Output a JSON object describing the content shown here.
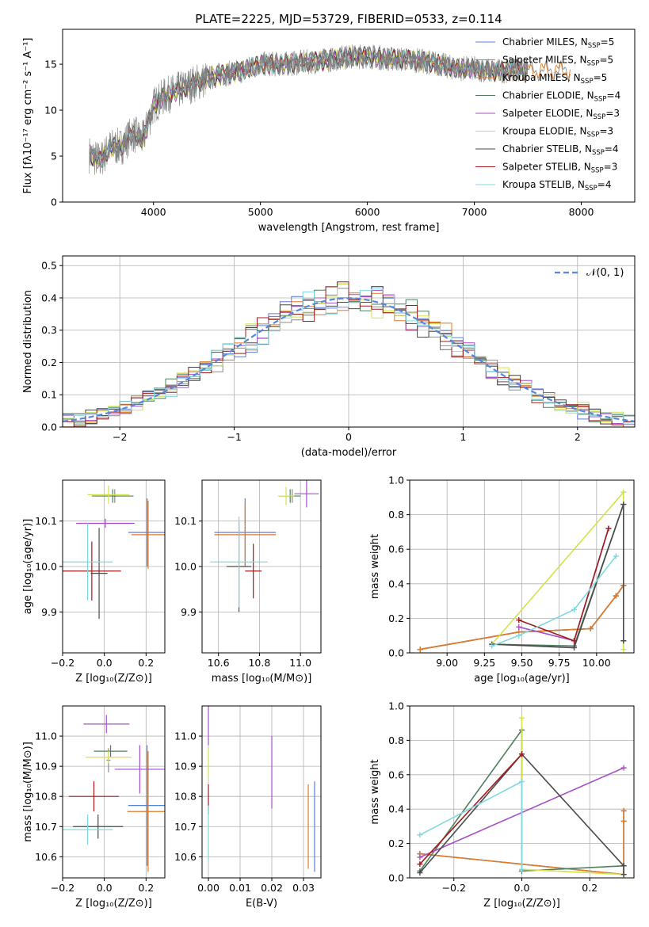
{
  "figure": {
    "title": "PLATE=2225, MJD=53729, FIBERID=0533, z=0.114"
  },
  "legend_entries": [
    {
      "label": "Chabrier MILES, N",
      "sub": "SSP",
      "suffix": "=5",
      "color": "#5a7fd6"
    },
    {
      "label": "Salpeter MILES, N",
      "sub": "SSP",
      "suffix": "=5",
      "color": "#8c8c8c"
    },
    {
      "label": "Kroupa MILES, N",
      "sub": "SSP",
      "suffix": "=5",
      "color": "#e07a26"
    },
    {
      "label": "Chabrier ELODIE, N",
      "sub": "SSP",
      "suffix": "=4",
      "color": "#4f7f5f"
    },
    {
      "label": "Salpeter ELODIE, N",
      "sub": "SSP",
      "suffix": "=3",
      "color": "#a64fc9"
    },
    {
      "label": "Kroupa ELODIE, N",
      "sub": "SSP",
      "suffix": "=3",
      "color": "#d6e04a"
    },
    {
      "label": "Chabrier STELIB, N",
      "sub": "SSP",
      "suffix": "=4",
      "color": "#4a4a4a"
    },
    {
      "label": "Salpeter STELIB, N",
      "sub": "SSP",
      "suffix": "=3",
      "color": "#a01c1c"
    },
    {
      "label": "Kroupa STELIB, N",
      "sub": "SSP",
      "suffix": "=4",
      "color": "#7fd9e0"
    }
  ],
  "chart_data": [
    {
      "id": "spectrum",
      "type": "line",
      "xlabel": "wavelength [Angstrom, rest frame]",
      "ylabel": "Flux [fλ10⁻¹⁷ erg cm⁻² s⁻¹ A⁻¹]",
      "xlim": [
        3150,
        8500
      ],
      "ylim": [
        0,
        18.8
      ],
      "xticks": [
        4000,
        5000,
        6000,
        7000,
        8000
      ],
      "yticks": [
        0,
        5,
        10,
        15
      ],
      "grid": false,
      "legend_position": "top-right",
      "data_envelope": {
        "x": [
          3400,
          3500,
          3600,
          3700,
          3800,
          3900,
          4000,
          4100,
          4200,
          4400,
          4600,
          4800,
          5000,
          5200,
          5400,
          5600,
          5800,
          6000,
          6200,
          6400,
          6600,
          6800,
          7000,
          7200,
          7400,
          7500
        ],
        "y": [
          5.2,
          4.5,
          6.0,
          6.0,
          7.5,
          6.8,
          10.5,
          11.5,
          12.0,
          13.0,
          13.8,
          14.2,
          15.0,
          15.0,
          15.2,
          15.4,
          15.8,
          15.9,
          15.6,
          15.5,
          15.2,
          14.6,
          14.5,
          14.2,
          14.5,
          14.3
        ]
      },
      "model_x_range": [
        3400,
        7500
      ],
      "models_tail": [
        {
          "model": "Chabrier MILES",
          "x_end": 7300
        },
        {
          "model": "Salpeter MILES",
          "x_end": 7900
        },
        {
          "model": "Kroupa MILES",
          "x_end": 7900
        }
      ]
    },
    {
      "id": "residuals",
      "type": "histogram",
      "xlabel": "(data-model)/error",
      "ylabel": "Normed distribution",
      "xlim": [
        -2.5,
        2.5
      ],
      "ylim": [
        0,
        0.53
      ],
      "xticks": [
        -2,
        -1,
        0,
        1,
        2
      ],
      "yticks": [
        0.0,
        0.1,
        0.2,
        0.3,
        0.4,
        0.5
      ],
      "grid": true,
      "legend_position": "top-right",
      "reference": {
        "label": "𝒩(0, 1)",
        "mean": 0,
        "sigma": 1,
        "color": "#5a86d9",
        "style": "dashed"
      },
      "bin_width": 0.1
    },
    {
      "id": "age_vs_Z",
      "type": "errorbar",
      "xlabel": "Z [log₁₀(Z/Z⊙)]",
      "ylabel": "age  [log₁₀(age/yr)]",
      "xlim": [
        -0.2,
        0.29
      ],
      "ylim": [
        9.81,
        10.19
      ],
      "xticks": [
        -0.2,
        0.0,
        0.2
      ],
      "yticks": [
        9.9,
        10.0,
        10.1
      ],
      "grid": true,
      "points": [
        {
          "model": "Chabrier MILES",
          "x": 0.205,
          "y": 10.075,
          "xerr": 0.09,
          "yerr": 0.075
        },
        {
          "model": "Salpeter MILES",
          "x": 0.05,
          "y": 10.155,
          "xerr": 0.01,
          "yerr": 0.015
        },
        {
          "model": "Kroupa MILES",
          "x": 0.21,
          "y": 10.07,
          "xerr": 0.08,
          "yerr": 0.075
        },
        {
          "model": "Chabrier ELODIE",
          "x": 0.04,
          "y": 10.155,
          "xerr": 0.1,
          "yerr": 0.015
        },
        {
          "model": "Salpeter ELODIE",
          "x": 0.005,
          "y": 10.095,
          "xerr": 0.14,
          "yerr": 0.01
        },
        {
          "model": "Kroupa ELODIE",
          "x": 0.02,
          "y": 10.158,
          "xerr": 0.1,
          "yerr": 0.02
        },
        {
          "model": "Chabrier STELIB",
          "x": -0.025,
          "y": 9.985,
          "xerr": 0.04,
          "yerr": 0.1
        },
        {
          "model": "Salpeter STELIB",
          "x": -0.06,
          "y": 9.99,
          "xerr": 0.14,
          "yerr": 0.065
        },
        {
          "model": "Kroupa STELIB",
          "x": -0.08,
          "y": 10.01,
          "xerr": 0.12,
          "yerr": 0.085
        }
      ]
    },
    {
      "id": "age_vs_mass",
      "type": "errorbar",
      "xlabel": "mass [log₁₀(M/M⊙)]",
      "ylabel": "",
      "xlim": [
        10.52,
        11.1
      ],
      "ylim": [
        9.81,
        10.19
      ],
      "xticks": [
        10.6,
        10.8,
        11.0
      ],
      "yticks": [
        9.9,
        10.0,
        10.1
      ],
      "grid": true,
      "points": [
        {
          "model": "Chabrier MILES",
          "x": 10.73,
          "y": 10.075,
          "xerr": 0.15,
          "yerr": 0.075
        },
        {
          "model": "Salpeter MILES",
          "x": 10.96,
          "y": 10.155,
          "xerr": 0.01,
          "yerr": 0.015
        },
        {
          "model": "Kroupa MILES",
          "x": 10.73,
          "y": 10.07,
          "xerr": 0.15,
          "yerr": 0.07
        },
        {
          "model": "Chabrier ELODIE",
          "x": 10.95,
          "y": 10.155,
          "xerr": 0.05,
          "yerr": 0.015
        },
        {
          "model": "Salpeter ELODIE",
          "x": 11.03,
          "y": 10.16,
          "xerr": 0.06,
          "yerr": 0.03
        },
        {
          "model": "Kroupa ELODIE",
          "x": 10.93,
          "y": 10.155,
          "xerr": 0.04,
          "yerr": 0.02
        },
        {
          "model": "Chabrier STELIB",
          "x": 10.7,
          "y": 10.0,
          "xerr": 0.06,
          "yerr": 0.1
        },
        {
          "model": "Salpeter STELIB",
          "x": 10.77,
          "y": 9.99,
          "xerr": 0.04,
          "yerr": 0.06
        },
        {
          "model": "Kroupa STELIB",
          "x": 10.7,
          "y": 10.01,
          "xerr": 0.14,
          "yerr": 0.1
        }
      ]
    },
    {
      "id": "weight_vs_age",
      "type": "line",
      "xlabel": "age  [log₁₀(age/yr)]",
      "ylabel": "mass weight",
      "xlim": [
        8.75,
        10.25
      ],
      "ylim": [
        0,
        1.0
      ],
      "xticks": [
        9.0,
        9.25,
        9.5,
        9.75,
        10.0
      ],
      "yticks": [
        0.0,
        0.2,
        0.4,
        0.6,
        0.8,
        1.0
      ],
      "grid": true,
      "series": [
        {
          "model": "Chabrier MILES",
          "x": [
            8.82,
            9.48,
            9.96,
            10.13,
            10.18
          ],
          "y": [
            0.02,
            0.12,
            0.14,
            0.33,
            0.39
          ]
        },
        {
          "model": "Salpeter MILES",
          "x": [
            8.82,
            9.48,
            9.96,
            10.13,
            10.18
          ],
          "y": [
            0.02,
            0.12,
            0.14,
            0.33,
            0.39
          ]
        },
        {
          "model": "Kroupa MILES",
          "x": [
            8.82,
            9.48,
            9.96,
            10.13,
            10.18
          ],
          "y": [
            0.02,
            0.12,
            0.14,
            0.33,
            0.39
          ]
        },
        {
          "model": "Chabrier ELODIE",
          "x": [
            9.3,
            9.85,
            10.18
          ],
          "y": [
            0.05,
            0.04,
            0.86
          ]
        },
        {
          "model": "Salpeter ELODIE",
          "x": [
            9.48,
            9.85,
            10.08
          ],
          "y": [
            0.15,
            0.07,
            0.72
          ]
        },
        {
          "model": "Kroupa ELODIE",
          "x": [
            9.3,
            10.18,
            10.18
          ],
          "y": [
            0.05,
            0.93,
            0.02
          ]
        },
        {
          "model": "Chabrier STELIB",
          "x": [
            9.3,
            9.85,
            10.18,
            10.18
          ],
          "y": [
            0.05,
            0.03,
            0.86,
            0.07
          ]
        },
        {
          "model": "Salpeter STELIB",
          "x": [
            9.48,
            9.85,
            10.08
          ],
          "y": [
            0.19,
            0.07,
            0.72
          ]
        },
        {
          "model": "Kroupa STELIB",
          "x": [
            9.3,
            9.48,
            9.85,
            10.13
          ],
          "y": [
            0.04,
            0.1,
            0.25,
            0.56
          ]
        }
      ]
    },
    {
      "id": "mass_vs_Z",
      "type": "errorbar",
      "xlabel": "Z [log₁₀(Z/Z⊙)]",
      "ylabel": "mass [log₁₀(M/M⊙)]",
      "xlim": [
        -0.2,
        0.29
      ],
      "ylim": [
        10.53,
        11.1
      ],
      "xticks": [
        -0.2,
        0.0,
        0.2
      ],
      "yticks": [
        10.6,
        10.7,
        10.8,
        10.9,
        11.0
      ],
      "grid": true,
      "points": [
        {
          "model": "Chabrier MILES",
          "x": 0.205,
          "y": 10.77,
          "xerr": 0.09,
          "yerr": 0.2
        },
        {
          "model": "Salpeter MILES",
          "x": 0.02,
          "y": 10.92,
          "xerr": 0.01,
          "yerr": 0.04
        },
        {
          "model": "Kroupa MILES",
          "x": 0.21,
          "y": 10.75,
          "xerr": 0.1,
          "yerr": 0.2
        },
        {
          "model": "Chabrier ELODIE",
          "x": 0.03,
          "y": 10.95,
          "xerr": 0.08,
          "yerr": 0.02
        },
        {
          "model": "Salpeter ELODIE",
          "x": 0.01,
          "y": 11.04,
          "xerr": 0.11,
          "yerr": 0.03
        },
        {
          "model": "Kroupa ELODIE",
          "x": 0.02,
          "y": 10.93,
          "xerr": 0.11,
          "yerr": 0.02
        },
        {
          "model": "Chabrier STELIB",
          "x": -0.03,
          "y": 10.7,
          "xerr": 0.12,
          "yerr": 0.04
        },
        {
          "model": "Salpeter STELIB",
          "x": -0.05,
          "y": 10.8,
          "xerr": 0.12,
          "yerr": 0.05
        },
        {
          "model": "Kroupa STELIB",
          "x": -0.08,
          "y": 10.69,
          "xerr": 0.12,
          "yerr": 0.05
        }
      ],
      "extra_bars": [
        {
          "model": "Salpeter ELODIE",
          "x": 0.17,
          "y": 10.89,
          "xerr": 0.12,
          "yerr": 0.08
        }
      ]
    },
    {
      "id": "mass_vs_ebv",
      "type": "errorbar",
      "xlabel": "E(B-V)",
      "ylabel": "",
      "xlim": [
        -0.002,
        0.0355
      ],
      "ylim": [
        10.53,
        11.1
      ],
      "xticks": [
        0.0,
        0.01,
        0.02,
        0.03
      ],
      "yticks": [
        10.6,
        10.7,
        10.8,
        10.9,
        11.0
      ],
      "grid": true,
      "points": [
        {
          "model": "Chabrier MILES",
          "x": 0.0335,
          "y": 10.7,
          "yerr": 0.15
        },
        {
          "model": "Kroupa MILES",
          "x": 0.0315,
          "y": 10.7,
          "yerr": 0.14
        },
        {
          "model": "Salpeter ELODIE",
          "x": 0.02,
          "y": 10.88,
          "yerr": 0.12
        },
        {
          "model": "Salpeter ELODIE",
          "x": 0.0,
          "y": 11.04,
          "yerr": 0.07
        },
        {
          "model": "Kroupa ELODIE",
          "x": 0.0,
          "y": 10.91,
          "yerr": 0.05
        },
        {
          "model": "Salpeter STELIB",
          "x": 0.0,
          "y": 10.79,
          "yerr": 0.05
        },
        {
          "model": "Kroupa STELIB",
          "x": 0.0,
          "y": 10.68,
          "yerr": 0.09
        }
      ]
    },
    {
      "id": "weight_vs_Z",
      "type": "line",
      "xlabel": "Z [log₁₀(Z/Z⊙)]",
      "ylabel": "mass weight",
      "xlim": [
        -0.33,
        0.33
      ],
      "ylim": [
        0,
        1.0
      ],
      "xticks": [
        -0.2,
        0.0,
        0.2
      ],
      "yticks": [
        0.0,
        0.2,
        0.4,
        0.6,
        0.8,
        1.0
      ],
      "grid": true,
      "series": [
        {
          "model": "Chabrier MILES",
          "x": [
            -0.3,
            0.3,
            0.3,
            0.3
          ],
          "y": [
            0.14,
            0.02,
            0.33,
            0.39
          ]
        },
        {
          "model": "Kroupa MILES",
          "x": [
            -0.3,
            0.3,
            0.3,
            0.3
          ],
          "y": [
            0.14,
            0.02,
            0.33,
            0.39
          ]
        },
        {
          "model": "Chabrier ELODIE",
          "x": [
            -0.3,
            0.0,
            0.0,
            0.3
          ],
          "y": [
            0.04,
            0.86,
            0.04,
            0.07
          ]
        },
        {
          "model": "Salpeter ELODIE",
          "x": [
            -0.3,
            0.3
          ],
          "y": [
            0.12,
            0.64
          ]
        },
        {
          "model": "Kroupa ELODIE",
          "x": [
            0.0,
            0.0,
            0.3
          ],
          "y": [
            0.93,
            0.05,
            0.02
          ]
        },
        {
          "model": "Chabrier STELIB",
          "x": [
            -0.3,
            0.0,
            0.3,
            0.3
          ],
          "y": [
            0.03,
            0.72,
            0.07,
            0.02
          ]
        },
        {
          "model": "Salpeter STELIB",
          "x": [
            -0.3,
            0.0
          ],
          "y": [
            0.08,
            0.72
          ]
        },
        {
          "model": "Kroupa STELIB",
          "x": [
            -0.3,
            0.0,
            0.0
          ],
          "y": [
            0.25,
            0.56,
            0.05
          ]
        }
      ]
    }
  ]
}
